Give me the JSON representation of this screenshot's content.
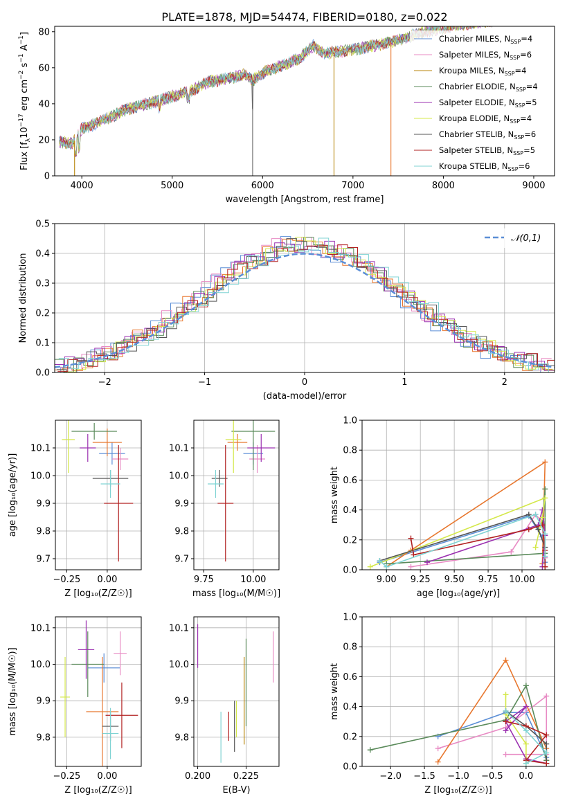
{
  "title": "PLATE=1878, MJD=54474, FIBERID=0180, z=0.022",
  "chart_data": [
    {
      "id": "spectrum",
      "type": "line",
      "xlabel": "wavelength [Angstrom, rest frame]",
      "ylabel_parts": [
        "Flux [f",
        "λ",
        "10",
        "−17",
        " erg cm",
        "−2",
        " s",
        "−1",
        " A",
        "−1",
        "]"
      ],
      "xlim": [
        3700,
        9230
      ],
      "ylim": [
        0,
        83
      ],
      "xticks": [
        4000,
        5000,
        6000,
        7000,
        8000,
        9000
      ],
      "yticks": [
        0,
        20,
        40,
        60,
        80
      ],
      "continuum": [
        [
          3750,
          19
        ],
        [
          3900,
          18
        ],
        [
          4000,
          26
        ],
        [
          4200,
          30
        ],
        [
          4500,
          37
        ],
        [
          4800,
          41
        ],
        [
          5000,
          44
        ],
        [
          5200,
          47
        ],
        [
          5400,
          52
        ],
        [
          5600,
          54
        ],
        [
          5800,
          56
        ],
        [
          5890,
          53
        ],
        [
          6000,
          57
        ],
        [
          6200,
          61
        ],
        [
          6400,
          65
        ],
        [
          6563,
          72
        ],
        [
          6700,
          68
        ],
        [
          7000,
          70
        ],
        [
          7200,
          72
        ],
        [
          7400,
          74
        ],
        [
          7600,
          77
        ],
        [
          7800,
          80
        ],
        [
          8000,
          82
        ],
        [
          8200,
          84
        ],
        [
          8500,
          86
        ],
        [
          8800,
          88
        ]
      ],
      "dropouts": [
        {
          "x": 3920,
          "color": "#b8860b"
        },
        {
          "x": 6790,
          "color": "#b8860b"
        },
        {
          "x": 7420,
          "color": "#e8772e"
        },
        {
          "x": 5890,
          "color": "#666666"
        }
      ],
      "legend_loc": "upper right",
      "legend": [
        {
          "prefix": "Chabrier MILES, N",
          "sub": "SSP",
          "suffix": "=4",
          "color": "#5b8ed6"
        },
        {
          "prefix": "Salpeter MILES, N",
          "sub": "SSP",
          "suffix": "=6",
          "color": "#e88bc4"
        },
        {
          "prefix": "Kroupa MILES, N",
          "sub": "SSP",
          "suffix": "=4",
          "color": "#b8860b"
        },
        {
          "prefix": "Chabrier ELODIE, N",
          "sub": "SSP",
          "suffix": "=4",
          "color": "#5a8a5a"
        },
        {
          "prefix": "Salpeter ELODIE, N",
          "sub": "SSP",
          "suffix": "=5",
          "color": "#9b30b0"
        },
        {
          "prefix": "Kroupa ELODIE, N",
          "sub": "SSP",
          "suffix": "=4",
          "color": "#d4e84a"
        },
        {
          "prefix": "Chabrier STELIB, N",
          "sub": "SSP",
          "suffix": "=6",
          "color": "#555555"
        },
        {
          "prefix": "Salpeter STELIB, N",
          "sub": "SSP",
          "suffix": "=5",
          "color": "#b22222"
        },
        {
          "prefix": "Kroupa STELIB, N",
          "sub": "SSP",
          "suffix": "=6",
          "color": "#7fd3d3"
        }
      ]
    },
    {
      "id": "residuals",
      "type": "histogram",
      "xlabel": "(data-model)/error",
      "ylabel": "Normed distribution",
      "xlim": [
        -2.5,
        2.5
      ],
      "ylim": [
        0,
        0.5
      ],
      "xticks": [
        -2,
        -1,
        0,
        1,
        2
      ],
      "yticks": [
        0,
        0.1,
        0.2,
        0.3,
        0.4,
        0.5
      ],
      "grid": true,
      "bin_width": 0.1,
      "series_colors": [
        "#5b8ed6",
        "#e88bc4",
        "#e8772e",
        "#5a8a5a",
        "#9b30b0",
        "#d4e84a",
        "#555555",
        "#b22222",
        "#7fd3d3"
      ],
      "reference": {
        "label": "𝒩(0,1)",
        "color": "#5b8ed6",
        "style": "dashed"
      },
      "legend_loc": "upper right"
    },
    {
      "id": "age_vs_Z",
      "type": "errorbar",
      "xlabel": "Z [log₁₀(Z/Z☉)]",
      "ylabel": "age  [log₁₀(age/yr)]",
      "xlim": [
        -0.32,
        0.21
      ],
      "ylim": [
        9.66,
        10.2
      ],
      "xticks": [
        -0.25,
        0.0
      ],
      "yticks": [
        9.7,
        9.8,
        9.9,
        10.0,
        10.1
      ],
      "grid": true,
      "points": [
        {
          "x": 0.03,
          "y": 10.08,
          "xerr": 0.08,
          "yerr": 0.04,
          "color": "#5b8ed6"
        },
        {
          "x": 0.08,
          "y": 10.06,
          "xerr": 0.05,
          "yerr": 0.04,
          "color": "#e88bc4"
        },
        {
          "x": 0.0,
          "y": 10.12,
          "xerr": 0.09,
          "yerr": 0.05,
          "color": "#e8772e"
        },
        {
          "x": -0.08,
          "y": 10.16,
          "xerr": 0.14,
          "yerr": 0.03,
          "color": "#5a8a5a"
        },
        {
          "x": -0.12,
          "y": 10.1,
          "xerr": 0.05,
          "yerr": 0.05,
          "color": "#9b30b0"
        },
        {
          "x": -0.24,
          "y": 10.13,
          "xerr": 0.04,
          "yerr": 0.12,
          "color": "#d4e84a"
        },
        {
          "x": 0.02,
          "y": 9.99,
          "xerr": 0.11,
          "yerr": 0.03,
          "color": "#555555"
        },
        {
          "x": 0.07,
          "y": 9.9,
          "xerr": 0.09,
          "yerr": 0.21,
          "color": "#b22222"
        },
        {
          "x": 0.02,
          "y": 9.97,
          "xerr": 0.06,
          "yerr": 0.05,
          "color": "#7fd3d3"
        }
      ]
    },
    {
      "id": "age_vs_mass",
      "type": "errorbar",
      "xlabel": "mass [log₁₀(M/M☉)]",
      "ylabel": "",
      "xlim": [
        9.7,
        10.13
      ],
      "ylim": [
        9.66,
        10.2
      ],
      "xticks": [
        9.75,
        10.0
      ],
      "yticks": [
        9.7,
        9.8,
        9.9,
        10.0,
        10.1
      ],
      "grid": true,
      "points": [
        {
          "x": 10.0,
          "y": 10.08,
          "xerr": 0.05,
          "yerr": 0.04,
          "color": "#5b8ed6"
        },
        {
          "x": 10.02,
          "y": 10.06,
          "xerr": 0.04,
          "yerr": 0.05,
          "color": "#e88bc4"
        },
        {
          "x": 9.92,
          "y": 10.12,
          "xerr": 0.05,
          "yerr": 0.03,
          "color": "#e8772e"
        },
        {
          "x": 10.0,
          "y": 10.16,
          "xerr": 0.11,
          "yerr": 0.14,
          "color": "#5a8a5a"
        },
        {
          "x": 10.04,
          "y": 10.1,
          "xerr": 0.07,
          "yerr": 0.05,
          "color": "#9b30b0"
        },
        {
          "x": 9.9,
          "y": 10.13,
          "xerr": 0.04,
          "yerr": 0.12,
          "color": "#d4e84a"
        },
        {
          "x": 9.83,
          "y": 9.99,
          "xerr": 0.04,
          "yerr": 0.03,
          "color": "#555555"
        },
        {
          "x": 9.86,
          "y": 9.9,
          "xerr": 0.04,
          "yerr": 0.21,
          "color": "#b22222"
        },
        {
          "x": 9.81,
          "y": 9.97,
          "xerr": 0.04,
          "yerr": 0.05,
          "color": "#7fd3d3"
        }
      ]
    },
    {
      "id": "massweight_vs_age",
      "type": "line",
      "xlabel": "age  [log₁₀(age/yr)]",
      "ylabel": "mass weight",
      "xlim": [
        8.82,
        10.24
      ],
      "ylim": [
        0,
        1
      ],
      "xticks": [
        9.0,
        9.25,
        9.5,
        9.75,
        10.0
      ],
      "yticks": [
        0,
        0.2,
        0.4,
        0.6,
        0.8,
        1.0
      ],
      "grid": true,
      "series": [
        {
          "name": "Chabrier MILES",
          "color": "#5b8ed6",
          "points": [
            [
              8.95,
              0.05
            ],
            [
              10.05,
              0.36
            ],
            [
              10.15,
              0.22
            ],
            [
              10.17,
              0.05
            ]
          ]
        },
        {
          "name": "Salpeter MILES",
          "color": "#e88bc4",
          "points": [
            [
              9.18,
              0.02
            ],
            [
              9.92,
              0.12
            ],
            [
              10.1,
              0.37
            ],
            [
              10.15,
              0.32
            ],
            [
              10.17,
              0.08
            ]
          ]
        },
        {
          "name": "Kroupa MILES",
          "color": "#e8772e",
          "points": [
            [
              9.0,
              0.02
            ],
            [
              9.18,
              0.13
            ],
            [
              10.17,
              0.72
            ],
            [
              10.15,
              0.04
            ]
          ]
        },
        {
          "name": "Chabrier ELODIE",
          "color": "#5a8a5a",
          "points": [
            [
              9.0,
              0.04
            ],
            [
              10.17,
              0.11
            ],
            [
              10.17,
              0.54
            ],
            [
              10.15,
              0.31
            ]
          ]
        },
        {
          "name": "Salpeter ELODIE",
          "color": "#9b30b0",
          "points": [
            [
              9.3,
              0.05
            ],
            [
              10.12,
              0.3
            ],
            [
              10.15,
              0.4
            ],
            [
              10.17,
              0.23
            ],
            [
              10.15,
              0.02
            ]
          ]
        },
        {
          "name": "Kroupa ELODIE",
          "color": "#d4e84a",
          "points": [
            [
              8.88,
              0.02
            ],
            [
              10.17,
              0.48
            ],
            [
              10.15,
              0.35
            ],
            [
              10.1,
              0.15
            ]
          ]
        },
        {
          "name": "Chabrier STELIB",
          "color": "#555555",
          "points": [
            [
              8.95,
              0.06
            ],
            [
              10.05,
              0.37
            ],
            [
              10.12,
              0.27
            ],
            [
              10.17,
              0.15
            ],
            [
              10.17,
              0.02
            ]
          ]
        },
        {
          "name": "Salpeter STELIB",
          "color": "#b22222",
          "points": [
            [
              9.18,
              0.21
            ],
            [
              9.2,
              0.1
            ],
            [
              10.05,
              0.27
            ],
            [
              10.15,
              0.3
            ],
            [
              10.17,
              0.13
            ],
            [
              10.17,
              0.02
            ]
          ]
        },
        {
          "name": "Kroupa STELIB",
          "color": "#7fd3d3",
          "points": [
            [
              8.95,
              0.06
            ],
            [
              9.0,
              0.02
            ],
            [
              10.1,
              0.37
            ],
            [
              10.17,
              0.24
            ],
            [
              10.17,
              0.09
            ]
          ]
        }
      ]
    },
    {
      "id": "mass_vs_Z",
      "type": "errorbar",
      "xlabel": "Z [log₁₀(Z/Z☉)]",
      "ylabel": "mass [log₁₀(M/M☉)]",
      "xlim": [
        -0.32,
        0.21
      ],
      "ylim": [
        9.72,
        10.13
      ],
      "xticks": [
        -0.25,
        0.0
      ],
      "yticks": [
        9.8,
        9.9,
        10.0,
        10.1
      ],
      "grid": true,
      "points": [
        {
          "x": -0.02,
          "y": 9.99,
          "xerr": 0.1,
          "yerr": 0.04,
          "color": "#5b8ed6"
        },
        {
          "x": 0.08,
          "y": 10.03,
          "xerr": 0.04,
          "yerr": 0.06,
          "color": "#e88bc4"
        },
        {
          "x": -0.03,
          "y": 9.87,
          "xerr": 0.1,
          "yerr": 0.15,
          "color": "#e8772e"
        },
        {
          "x": -0.12,
          "y": 10.0,
          "xerr": 0.1,
          "yerr": 0.09,
          "color": "#5a8a5a"
        },
        {
          "x": -0.13,
          "y": 10.04,
          "xerr": 0.05,
          "yerr": 0.08,
          "color": "#9b30b0"
        },
        {
          "x": -0.26,
          "y": 9.91,
          "xerr": 0.03,
          "yerr": 0.11,
          "color": "#d4e84a"
        },
        {
          "x": 0.02,
          "y": 9.83,
          "xerr": 0.05,
          "yerr": 0.04,
          "color": "#555555"
        },
        {
          "x": 0.09,
          "y": 9.86,
          "xerr": 0.1,
          "yerr": 0.09,
          "color": "#b22222"
        },
        {
          "x": 0.02,
          "y": 9.81,
          "xerr": 0.05,
          "yerr": 0.07,
          "color": "#7fd3d3"
        }
      ]
    },
    {
      "id": "mass_vs_ebv",
      "type": "errorbar",
      "xlabel": "E(B-V)",
      "ylabel": "",
      "xlim": [
        0.198,
        0.242
      ],
      "ylim": [
        9.72,
        10.13
      ],
      "xticks": [
        0.2,
        0.225
      ],
      "yticks": [
        9.8,
        9.9,
        10.0,
        10.1
      ],
      "grid": true,
      "points": [
        {
          "x": 0.2,
          "y": 10.05,
          "xerr": 0.0,
          "yerr": 0.06,
          "color": "#9b30b0"
        },
        {
          "x": 0.239,
          "y": 10.02,
          "xerr": 0.0,
          "yerr": 0.07,
          "color": "#e88bc4"
        },
        {
          "x": 0.225,
          "y": 9.95,
          "xerr": 0.0,
          "yerr": 0.12,
          "color": "#5a8a5a"
        },
        {
          "x": 0.224,
          "y": 9.9,
          "xerr": 0.0,
          "yerr": 0.12,
          "color": "#b8860b"
        },
        {
          "x": 0.22,
          "y": 9.85,
          "xerr": 0.0,
          "yerr": 0.05,
          "color": "#d4e84a"
        },
        {
          "x": 0.219,
          "y": 9.83,
          "xerr": 0.0,
          "yerr": 0.07,
          "color": "#555555"
        },
        {
          "x": 0.216,
          "y": 9.83,
          "xerr": 0.0,
          "yerr": 0.04,
          "color": "#b22222"
        },
        {
          "x": 0.212,
          "y": 9.8,
          "xerr": 0.0,
          "yerr": 0.07,
          "color": "#7fd3d3"
        }
      ]
    },
    {
      "id": "massweight_vs_Z",
      "type": "line",
      "xlabel": "Z [log₁₀(Z/Z☉)]",
      "ylabel": "mass weight",
      "xlim": [
        -2.42,
        0.42
      ],
      "ylim": [
        0,
        1
      ],
      "xticks": [
        -2.0,
        -1.5,
        -1.0,
        -0.5,
        0.0
      ],
      "yticks": [
        0,
        0.2,
        0.4,
        0.6,
        0.8,
        1.0
      ],
      "grid": true,
      "series": [
        {
          "name": "Chabrier MILES",
          "color": "#5b8ed6",
          "points": [
            [
              -1.3,
              0.2
            ],
            [
              -0.3,
              0.36
            ],
            [
              0.0,
              0.36
            ],
            [
              0.3,
              0.06
            ],
            [
              0.3,
              0.02
            ]
          ]
        },
        {
          "name": "Salpeter MILES",
          "color": "#e88bc4",
          "points": [
            [
              -1.3,
              0.12
            ],
            [
              -0.3,
              0.26
            ],
            [
              0.3,
              0.47
            ],
            [
              0.3,
              0.08
            ],
            [
              -0.3,
              0.08
            ]
          ]
        },
        {
          "name": "Kroupa MILES",
          "color": "#e8772e",
          "points": [
            [
              -1.3,
              0.03
            ],
            [
              -0.3,
              0.71
            ],
            [
              0.3,
              0.12
            ],
            [
              0.3,
              0.04
            ]
          ]
        },
        {
          "name": "Chabrier ELODIE",
          "color": "#5a8a5a",
          "points": [
            [
              -2.3,
              0.11
            ],
            [
              -0.3,
              0.31
            ],
            [
              0.0,
              0.54
            ],
            [
              0.3,
              0.04
            ]
          ]
        },
        {
          "name": "Salpeter ELODIE",
          "color": "#9b30b0",
          "points": [
            [
              -0.3,
              0.24
            ],
            [
              0.0,
              0.4
            ],
            [
              -0.3,
              0.3
            ],
            [
              0.0,
              0.05
            ],
            [
              0.3,
              0.02
            ]
          ]
        },
        {
          "name": "Kroupa ELODIE",
          "color": "#d4e84a",
          "points": [
            [
              -0.3,
              0.48
            ],
            [
              -0.3,
              0.35
            ],
            [
              0.0,
              0.15
            ],
            [
              0.0,
              0.02
            ]
          ]
        },
        {
          "name": "Chabrier STELIB",
          "color": "#555555",
          "points": [
            [
              -0.3,
              0.37
            ],
            [
              0.0,
              0.27
            ],
            [
              0.3,
              0.15
            ],
            [
              0.3,
              0.02
            ]
          ]
        },
        {
          "name": "Salpeter STELIB",
          "color": "#b22222",
          "points": [
            [
              -0.3,
              0.3
            ],
            [
              0.0,
              0.27
            ],
            [
              0.3,
              0.21
            ],
            [
              0.0,
              0.04
            ],
            [
              0.3,
              0.02
            ]
          ]
        },
        {
          "name": "Kroupa STELIB",
          "color": "#7fd3d3",
          "points": [
            [
              -0.3,
              0.37
            ],
            [
              0.0,
              0.24
            ],
            [
              0.3,
              0.09
            ],
            [
              0.0,
              0.02
            ]
          ]
        }
      ]
    }
  ]
}
